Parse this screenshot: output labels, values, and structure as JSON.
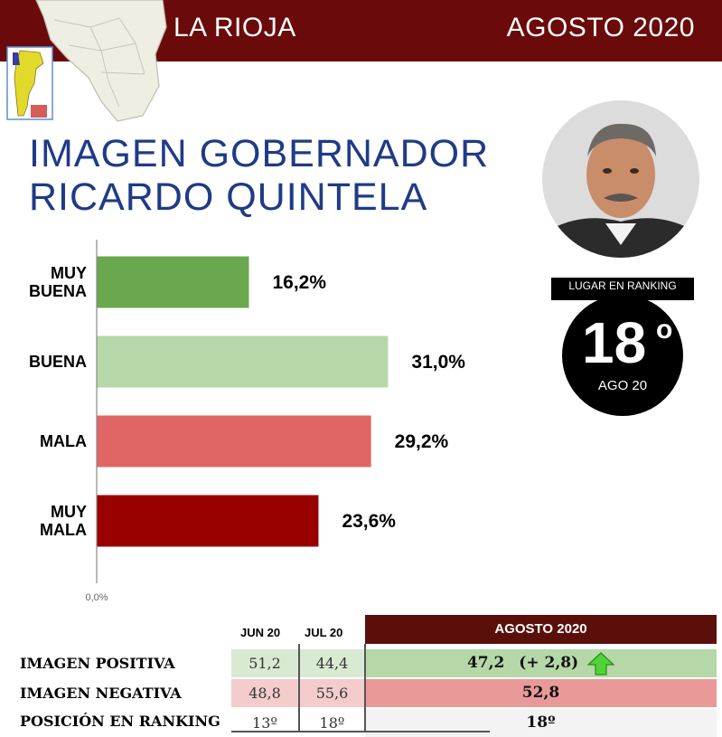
{
  "header": {
    "region": "LA RIOJA",
    "date": "AGOSTO 2020",
    "colors": {
      "band": "#6b0a0a",
      "title": "#1f3b87"
    }
  },
  "title": {
    "line1": "IMAGEN GOBERNADOR",
    "line2": "RICARDO QUINTELA"
  },
  "ranking": {
    "label": "LUGAR EN RANKING",
    "number": "18",
    "ordinal": "o",
    "period": "AGO 20"
  },
  "chart_data": {
    "type": "bar",
    "orientation": "horizontal",
    "categories": [
      [
        "MUY",
        "BUENA"
      ],
      [
        "BUENA"
      ],
      [
        "MALA"
      ],
      [
        "MUY",
        "MALA"
      ]
    ],
    "values": [
      16.2,
      31.0,
      29.2,
      23.6
    ],
    "value_labels": [
      "16,2%",
      "31,0%",
      "29,2%",
      "23,6%"
    ],
    "colors": [
      "#6aa84f",
      "#b6d7a8",
      "#e06666",
      "#990000"
    ],
    "axis_min_label": "0,0%",
    "xlim": [
      0,
      60
    ],
    "grid": false
  },
  "table": {
    "headers": {
      "jun": "JUN 20",
      "jul": "JUL 20",
      "aug": "AGOSTO 2020"
    },
    "rows": [
      {
        "label": "IMAGEN POSITIVA",
        "jun": "51,2",
        "jul": "44,4",
        "aug": "47,2",
        "change": "(+ 2,8)",
        "trend": "up-arrow-icon"
      },
      {
        "label": "IMAGEN NEGATIVA",
        "jun": "48,8",
        "jul": "55,6",
        "aug": "52,8"
      },
      {
        "label": "POSICIÓN EN RANKING",
        "jun": "13º",
        "jul": "18º",
        "aug": "18º"
      }
    ],
    "colors": {
      "positive": "#b6d7a8",
      "positive_light": "#d9ead3",
      "negative": "#ea9999",
      "negative_light": "#f4cccc",
      "neutral": "#f3f3f3"
    }
  }
}
